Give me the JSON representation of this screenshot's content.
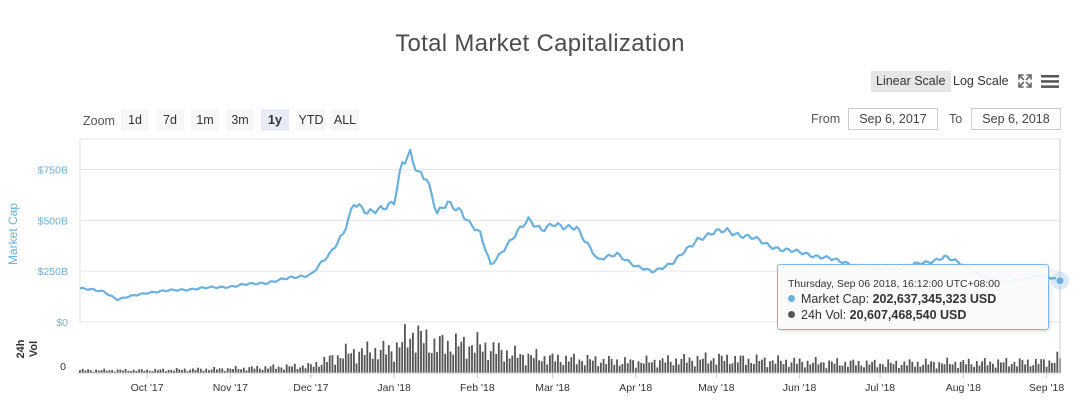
{
  "title": "Total Market Capitalization",
  "scale": {
    "linear_label": "Linear Scale",
    "log_label": "Log Scale",
    "active": "linear"
  },
  "icons": {
    "fullscreen": "fullscreen-icon",
    "menu": "hamburger-menu-icon"
  },
  "zoom": {
    "label": "Zoom",
    "buttons": [
      "1d",
      "7d",
      "1m",
      "3m",
      "1y",
      "YTD",
      "ALL"
    ],
    "active": "1y"
  },
  "range": {
    "from_label": "From",
    "from_value": "Sep 6, 2017",
    "to_label": "To",
    "to_value": "Sep 6, 2018"
  },
  "tooltip": {
    "time": "Thursday, Sep 06 2018, 16:12:00 UTC+08:00",
    "rows": [
      {
        "label": "Market Cap:",
        "value": "202,637,345,323 USD",
        "color": "#6bb0df"
      },
      {
        "label": "24h Vol:",
        "value": "20,607,468,540 USD",
        "color": "#555555"
      }
    ]
  },
  "colors": {
    "market_cap": "#6bb0df",
    "volume": "#555555",
    "axis_text": "#6bb0df",
    "grid": "#e6e6e6"
  },
  "chart_data": {
    "type": "line",
    "x_start": "2017-09-06",
    "x_end": "2018-09-06",
    "x_tick_labels": [
      "Oct '17",
      "Nov '17",
      "Dec '17",
      "Jan '18",
      "Feb '18",
      "Mar '18",
      "Apr '18",
      "May '18",
      "Jun '18",
      "Jul '18",
      "Aug '18",
      "Sep '18"
    ],
    "x_tick_dates": [
      "2017-10-01",
      "2017-11-01",
      "2017-12-01",
      "2018-01-01",
      "2018-02-01",
      "2018-03-01",
      "2018-04-01",
      "2018-05-01",
      "2018-06-01",
      "2018-07-01",
      "2018-08-01",
      "2018-09-01"
    ],
    "ylabel": "Market Cap",
    "y_ticks": [
      0,
      250,
      500,
      750
    ],
    "y_tick_labels": [
      "$0",
      "$250B",
      "$500B",
      "$750B"
    ],
    "ylim": [
      0,
      900
    ],
    "y_unit": "billion USD",
    "series": [
      {
        "name": "Market Cap",
        "dates": [
          "2017-09-06",
          "2017-09-15",
          "2017-09-20",
          "2017-10-01",
          "2017-10-15",
          "2017-11-01",
          "2017-11-15",
          "2017-12-01",
          "2017-12-08",
          "2017-12-13",
          "2017-12-17",
          "2017-12-22",
          "2017-12-28",
          "2018-01-01",
          "2018-01-04",
          "2018-01-07",
          "2018-01-10",
          "2018-01-13",
          "2018-01-17",
          "2018-01-21",
          "2018-01-26",
          "2018-01-29",
          "2018-02-02",
          "2018-02-06",
          "2018-02-12",
          "2018-02-20",
          "2018-02-25",
          "2018-03-01",
          "2018-03-05",
          "2018-03-10",
          "2018-03-18",
          "2018-03-25",
          "2018-04-01",
          "2018-04-07",
          "2018-04-15",
          "2018-04-24",
          "2018-05-01",
          "2018-05-05",
          "2018-05-15",
          "2018-05-20",
          "2018-05-25",
          "2018-06-01",
          "2018-06-10",
          "2018-06-15",
          "2018-06-25",
          "2018-07-01",
          "2018-07-10",
          "2018-07-20",
          "2018-07-25",
          "2018-08-01",
          "2018-08-10",
          "2018-08-15",
          "2018-08-25",
          "2018-09-01",
          "2018-09-06"
        ],
        "values": [
          165,
          150,
          110,
          145,
          160,
          175,
          195,
          235,
          330,
          440,
          585,
          530,
          570,
          590,
          770,
          820,
          740,
          720,
          530,
          580,
          550,
          490,
          430,
          280,
          380,
          500,
          460,
          480,
          460,
          470,
          300,
          340,
          270,
          250,
          290,
          410,
          440,
          450,
          410,
          380,
          360,
          340,
          320,
          300,
          270,
          255,
          270,
          300,
          320,
          280,
          210,
          200,
          215,
          230,
          203
        ]
      }
    ],
    "volume": {
      "name": "24h Vol",
      "ylabel": "24h Vol",
      "y_tick_labels": [
        "0"
      ],
      "unit": "billion USD",
      "dates": [
        "2017-09-06",
        "2017-10-01",
        "2017-11-01",
        "2017-12-01",
        "2017-12-15",
        "2018-01-01",
        "2018-01-08",
        "2018-01-15",
        "2018-02-01",
        "2018-02-15",
        "2018-03-01",
        "2018-04-01",
        "2018-05-01",
        "2018-06-01",
        "2018-07-01",
        "2018-08-01",
        "2018-09-01",
        "2018-09-06"
      ],
      "values": [
        4,
        4,
        6,
        10,
        28,
        32,
        55,
        40,
        38,
        25,
        20,
        15,
        20,
        15,
        13,
        14,
        15,
        21
      ]
    }
  }
}
